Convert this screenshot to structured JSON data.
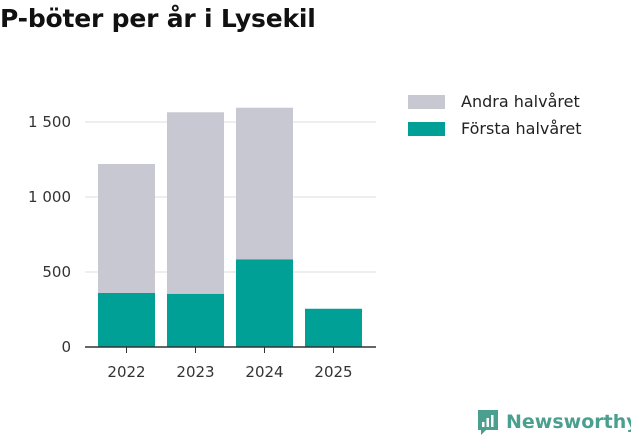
{
  "title": "P-böter per år i Lysekil",
  "chart_data": {
    "type": "bar",
    "stacked": true,
    "categories": [
      "2022",
      "2023",
      "2024",
      "2025"
    ],
    "series": [
      {
        "name": "Första halvåret",
        "values": [
          360,
          355,
          585,
          255
        ],
        "color": "#00a096"
      },
      {
        "name": "Andra halvåret",
        "values": [
          860,
          1210,
          1010,
          0
        ],
        "color": "#c8c8d2"
      }
    ],
    "yticks": [
      0,
      500,
      1000,
      1500
    ],
    "ytick_labels": [
      "0",
      "500",
      "1 000",
      "1 500"
    ],
    "ylim": [
      0,
      1600
    ],
    "grid": true,
    "legend_placement": "right",
    "legend": [
      {
        "label": "Andra halvåret",
        "color": "#c8c8d2"
      },
      {
        "label": "Första halvåret",
        "color": "#00a096"
      }
    ]
  },
  "brand": {
    "name": "Newsworthy",
    "color": "#4b9f8f",
    "icon": "newsworthy-logo-icon"
  }
}
